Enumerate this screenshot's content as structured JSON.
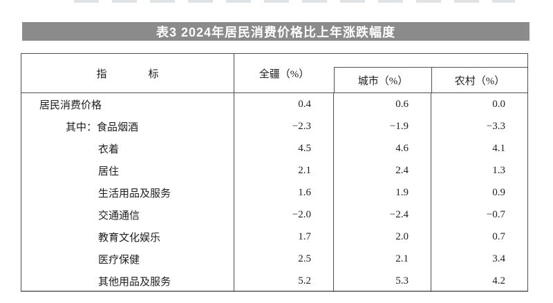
{
  "title_bar": {
    "title": "表3 2024年居民消费价格比上年涨跌幅度",
    "bg_color": "#8b8b8b",
    "text_color": "#ffffff"
  },
  "table": {
    "header": {
      "indicator": "指标",
      "region_all": "全疆（%）",
      "city": "城市（%）",
      "rural": "农村（%）"
    },
    "rows": [
      {
        "label": "居民消费价格",
        "values": [
          "0.4",
          "0.6",
          "0.0"
        ]
      },
      {
        "label": "其中：食品烟酒",
        "values": [
          "−2.3",
          "−1.9",
          "−3.3"
        ]
      },
      {
        "label": "衣着",
        "values": [
          "4.5",
          "4.6",
          "4.1"
        ]
      },
      {
        "label": "居住",
        "values": [
          "2.1",
          "2.4",
          "1.3"
        ]
      },
      {
        "label": "生活用品及服务",
        "values": [
          "1.6",
          "1.9",
          "0.9"
        ]
      },
      {
        "label": "交通通信",
        "values": [
          "−2.0",
          "−2.4",
          "−0.7"
        ]
      },
      {
        "label": "教育文化娱乐",
        "values": [
          "1.7",
          "2.0",
          "0.7"
        ]
      },
      {
        "label": "医疗保健",
        "values": [
          "2.5",
          "2.1",
          "3.4"
        ]
      },
      {
        "label": "其他用品及服务",
        "values": [
          "5.2",
          "5.3",
          "4.2"
        ]
      }
    ],
    "border_color": "#4d4d4d",
    "text_color": "#1d1d1d"
  }
}
